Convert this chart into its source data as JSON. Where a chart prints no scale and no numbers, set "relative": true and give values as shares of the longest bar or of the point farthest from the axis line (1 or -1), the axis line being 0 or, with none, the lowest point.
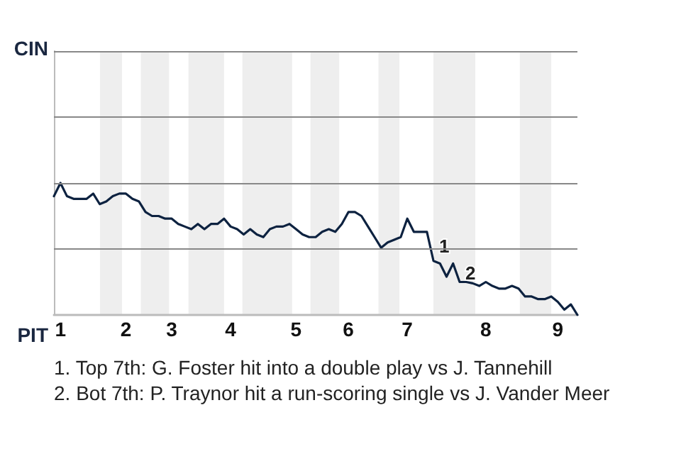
{
  "chart_data": {
    "type": "line",
    "relative": true,
    "categories": [
      null,
      "1",
      null,
      null,
      null,
      null,
      null,
      null,
      null,
      null,
      null,
      "2",
      null,
      null,
      null,
      null,
      null,
      null,
      "3",
      null,
      null,
      null,
      null,
      null,
      null,
      null,
      null,
      "4",
      null,
      null,
      null,
      null,
      null,
      null,
      null,
      null,
      null,
      "5",
      null,
      null,
      null,
      null,
      null,
      null,
      null,
      "6",
      null,
      null,
      null,
      null,
      null,
      null,
      null,
      null,
      "7",
      null,
      null,
      null,
      null,
      null,
      null,
      null,
      null,
      null,
      null,
      null,
      "8",
      null,
      null,
      null,
      null,
      null,
      null,
      null,
      null,
      null,
      null,
      "9",
      null,
      null,
      null
    ],
    "marker": "none",
    "line_style": "solid",
    "series": [
      {
        "color": "#0d2240",
        "values": [
          0.9,
          1,
          0.9,
          0.88,
          0.88,
          0.88,
          0.92,
          0.84,
          0.86,
          0.9,
          0.92,
          0.92,
          0.88,
          0.86,
          0.78,
          0.75,
          0.75,
          0.73,
          0.73,
          0.69,
          0.67,
          0.65,
          0.69,
          0.65,
          0.69,
          0.69,
          0.73,
          0.67,
          0.65,
          0.61,
          0.65,
          0.61,
          0.59,
          0.65,
          0.67,
          0.67,
          0.69,
          0.65,
          0.61,
          0.59,
          0.59,
          0.63,
          0.65,
          0.63,
          0.69,
          0.78,
          0.78,
          0.75,
          0.67,
          0.59,
          0.51,
          0.55,
          0.57,
          0.59,
          0.73,
          0.63,
          0.63,
          0.63,
          0.41,
          0.39,
          0.29,
          0.39,
          0.25,
          0.25,
          0.24,
          0.22,
          0.25,
          0.22,
          0.2,
          0.2,
          0.22,
          0.2,
          0.14,
          0.14,
          0.12,
          0.12,
          0.14,
          0.1,
          0.04,
          0.08,
          0
        ]
      }
    ],
    "ref_lines": [
      {
        "axis": "y",
        "value": 0.5,
        "color": "#888888"
      },
      {
        "axis": "y",
        "value": 1,
        "color": "#888888"
      },
      {
        "axis": "y",
        "value": 1.5,
        "color": "#888888"
      },
      {
        "axis": "y",
        "value": 2,
        "color": "#888888"
      }
    ],
    "annotations": [
      "CIN",
      "PIT",
      {
        "text": "1",
        "y": 0.45
      },
      {
        "text": "2",
        "y": 0.25
      },
      "1. Top 7th: G. Foster hit into a double play vs J. Tannehill",
      "2. Bot 7th: P. Traynor hit a run-scoring single vs J. Vander Meer"
    ]
  }
}
